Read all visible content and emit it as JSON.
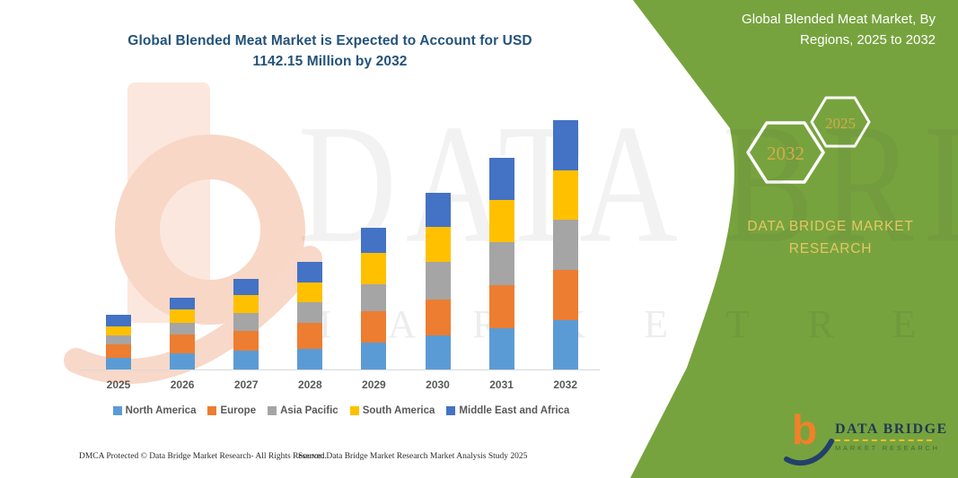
{
  "chart": {
    "title_lines": [
      "Global Blended Meat Market is Expected to Account for USD",
      "1142.15 Million by 2032"
    ],
    "title_color": "#24537b"
  },
  "chart_data": {
    "type": "bar",
    "stacked": true,
    "title": "Global Blended Meat Market is Expected to Account for USD 1142.15 Million by 2032",
    "unit": "USD Million",
    "categories": [
      "2025",
      "2026",
      "2027",
      "2028",
      "2029",
      "2030",
      "2031",
      "2032"
    ],
    "series": [
      {
        "name": "North America",
        "color": "#5B9BD5",
        "values": [
          53,
          74,
          86,
          94,
          123,
          156,
          189,
          226
        ]
      },
      {
        "name": "Europe",
        "color": "#ED7D31",
        "values": [
          62,
          86,
          90,
          119,
          144,
          164,
          197,
          230
        ]
      },
      {
        "name": "Asia Pacific",
        "color": "#A5A5A5",
        "values": [
          41,
          53,
          82,
          94,
          123,
          173,
          197,
          230
        ]
      },
      {
        "name": "South America",
        "color": "#FFC000",
        "values": [
          41,
          62,
          82,
          90,
          144,
          160,
          193,
          226
        ]
      },
      {
        "name": "Middle East and Africa",
        "color": "#4472C4",
        "values": [
          53,
          53,
          74,
          94,
          115,
          156,
          193,
          230.15
        ]
      }
    ],
    "totals": [
      250,
      328,
      414,
      491,
      649,
      809,
      969,
      1142.15
    ],
    "ylim": [
      0,
      1142.15
    ],
    "y_axis_visible": false,
    "grid": false,
    "legend_position": "bottom"
  },
  "sidebar": {
    "title": "Global Blended Meat Market, By Regions, 2025 to 2032",
    "hexagons": {
      "large": "2032",
      "small": "2025"
    },
    "brand_text": "DATA BRIDGE MARKET RESEARCH",
    "panel_color": "#77A33E",
    "gold_color": "#E4C765"
  },
  "watermark": {
    "brand": "DATA BRIDGE",
    "sub": "M A R K E T  R E S E A R C H"
  },
  "logo": {
    "name": "DATA BRIDGE",
    "subtitle": "MARKET RESEARCH"
  },
  "footer": {
    "left": "DMCA Protected © Data Bridge Market Research-  All Rights Reserved.",
    "right": "Source: Data Bridge Market Research  Market Analysis Study 2025"
  }
}
